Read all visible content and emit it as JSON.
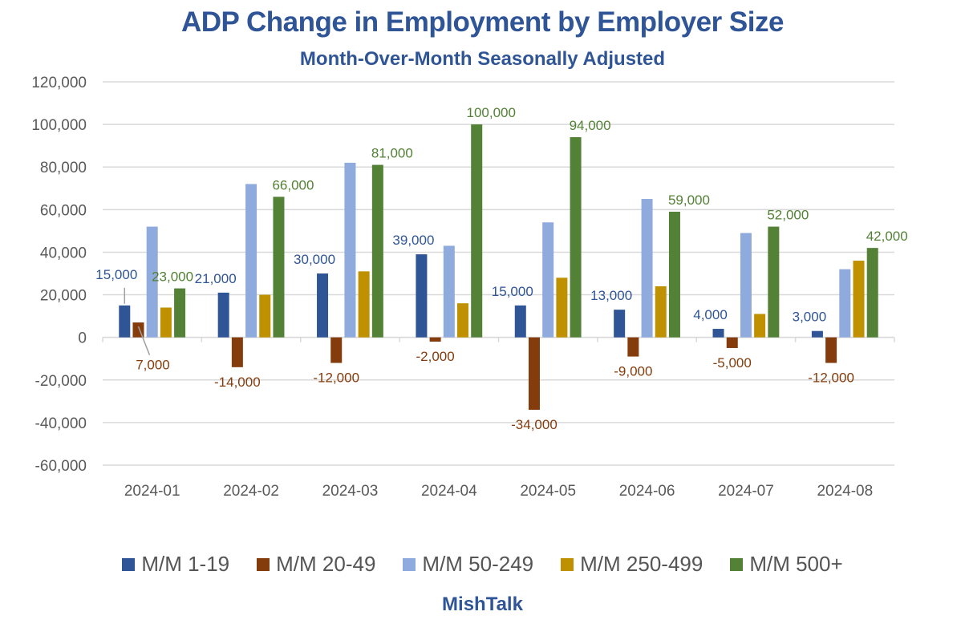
{
  "chart_data": {
    "type": "bar",
    "title": "ADP Change in Employment by Employer Size",
    "subtitle": "Month-Over-Month Seasonally Adjusted",
    "credit": "MishTalk",
    "xlabel": "",
    "ylabel": "",
    "ylim": [
      -60000,
      120000
    ],
    "yticks": [
      -60000,
      -40000,
      -20000,
      0,
      20000,
      40000,
      60000,
      80000,
      100000,
      120000
    ],
    "ytick_labels": [
      "-60,000",
      "-40,000",
      "-20,000",
      "0",
      "20,000",
      "40,000",
      "60,000",
      "80,000",
      "100,000",
      "120,000"
    ],
    "grid": true,
    "legend_position": "bottom",
    "categories": [
      "2024-01",
      "2024-02",
      "2024-03",
      "2024-04",
      "2024-05",
      "2024-06",
      "2024-07",
      "2024-08"
    ],
    "series": [
      {
        "name": "M/M 1-19",
        "color": "#2F5597",
        "values": [
          15000,
          21000,
          30000,
          39000,
          15000,
          13000,
          4000,
          3000
        ],
        "labels": [
          "15,000",
          "21,000",
          "30,000",
          "39,000",
          "15,000",
          "13,000",
          "4,000",
          "3,000"
        ],
        "label_color": "#2F5597"
      },
      {
        "name": "M/M 20-49",
        "color": "#843C0C",
        "values": [
          7000,
          -14000,
          -12000,
          -2000,
          -34000,
          -9000,
          -5000,
          -12000
        ],
        "labels": [
          "7,000",
          "-14,000",
          "-12,000",
          "-2,000",
          "-34,000",
          "-9,000",
          "-5,000",
          "-12,000"
        ],
        "label_color": "#843C0C"
      },
      {
        "name": "M/M 50-249",
        "color": "#8FAADC",
        "values": [
          52000,
          72000,
          82000,
          43000,
          54000,
          65000,
          49000,
          32000
        ]
      },
      {
        "name": "M/M 250-499",
        "color": "#BF9000",
        "values": [
          14000,
          20000,
          31000,
          16000,
          28000,
          24000,
          11000,
          36000
        ]
      },
      {
        "name": "M/M 500+",
        "color": "#538135",
        "values": [
          23000,
          66000,
          81000,
          100000,
          94000,
          59000,
          52000,
          42000
        ],
        "labels": [
          "23,000",
          "66,000",
          "81,000",
          "100,000",
          "94,000",
          "59,000",
          "52,000",
          "42,000"
        ],
        "label_color": "#538135"
      }
    ]
  }
}
